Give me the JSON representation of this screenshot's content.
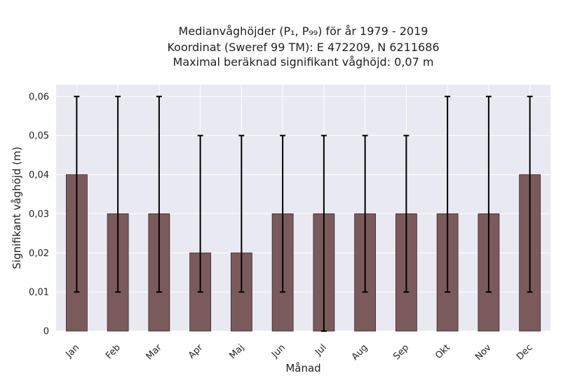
{
  "chart_data": {
    "type": "bar",
    "title_lines": [
      "Medianvåghöjder (P₁, P₉₉) för år 1979 - 2019",
      "Koordinat (Sweref 99 TM): E 472209, N 6211686",
      "Maximal beräknad signifikant våghöjd: 0,07 m"
    ],
    "xlabel": "Månad",
    "ylabel": "Signifikant våghöjd (m)",
    "categories": [
      "Jan",
      "Feb",
      "Mar",
      "Apr",
      "Maj",
      "Jun",
      "Jul",
      "Aug",
      "Sep",
      "Okt",
      "Nov",
      "Dec"
    ],
    "values": [
      0.04,
      0.03,
      0.03,
      0.02,
      0.02,
      0.03,
      0.03,
      0.03,
      0.03,
      0.03,
      0.03,
      0.04
    ],
    "error_low": [
      0.01,
      0.01,
      0.01,
      0.01,
      0.01,
      0.01,
      0.0,
      0.01,
      0.01,
      0.01,
      0.01,
      0.01
    ],
    "error_high": [
      0.06,
      0.06,
      0.06,
      0.05,
      0.05,
      0.05,
      0.05,
      0.05,
      0.05,
      0.06,
      0.06,
      0.06
    ],
    "ylim": [
      0,
      0.063
    ],
    "yticks": [
      0,
      0.01,
      0.02,
      0.03,
      0.04,
      0.05,
      0.06
    ],
    "ytick_labels": [
      "0",
      "0,01",
      "0,02",
      "0,03",
      "0,04",
      "0,05",
      "0,06"
    ],
    "grid": true,
    "colors": {
      "bar": "#7b5a5b",
      "bar_edge": "#3a2a2a",
      "error_bar": "#000000",
      "plot_bg": "#e9e9f1",
      "grid": "#ffffff"
    }
  }
}
